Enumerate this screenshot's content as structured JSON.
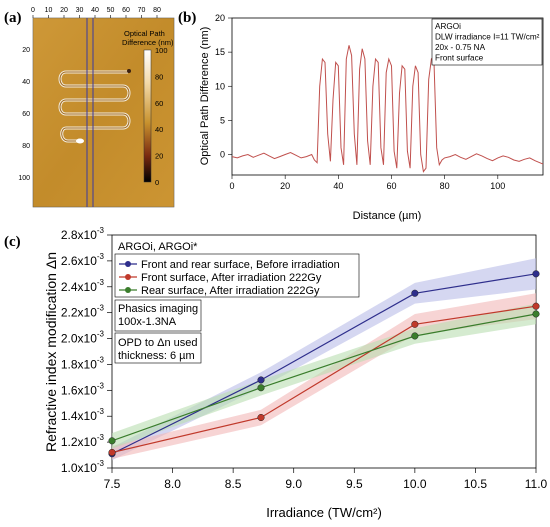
{
  "panels": [
    "(a)",
    "(b)",
    "(c)"
  ],
  "panel_a": {
    "x_ticks": [
      "0",
      "10",
      "20",
      "30",
      "40",
      "50",
      "60",
      "70",
      "80"
    ],
    "y_ticks": [
      "20",
      "40",
      "60",
      "80",
      "100"
    ],
    "colorbar_title_line1": "Optical Path",
    "colorbar_title_line2": "Difference (nm)",
    "colorbar_ticks": [
      "100",
      "80",
      "60",
      "40",
      "20",
      "0"
    ],
    "colors": {
      "background": "#c8922e",
      "waveguide": "#e8e0d0",
      "line": "#3a3aa0"
    }
  },
  "chart_data": [
    {
      "type": "line",
      "title": "",
      "xlabel": "Distance (µm)",
      "ylabel": "Optical Path Difference (nm)",
      "xlim": [
        0,
        117
      ],
      "ylim": [
        -3,
        20
      ],
      "x_ticks": [
        "0",
        "20",
        "40",
        "60",
        "80",
        "100"
      ],
      "y_ticks": [
        "0",
        "5",
        "10",
        "15",
        "20"
      ],
      "annotation": [
        "ARGOi",
        "DLW irradiance I=11 TW/cm²",
        "20x - 0.75 NA",
        "Front surface"
      ],
      "series": [
        {
          "color": "#c0504d",
          "x": [
            0,
            2,
            4,
            6,
            8,
            10,
            12,
            14,
            16,
            18,
            20,
            22,
            24,
            26,
            28,
            30,
            31,
            32,
            33,
            34,
            35,
            36,
            37,
            38,
            39,
            40,
            41,
            42,
            43,
            44,
            45,
            46,
            47,
            48,
            49,
            50,
            51,
            52,
            53,
            54,
            55,
            56,
            57,
            58,
            59,
            60,
            61,
            62,
            63,
            64,
            65,
            66,
            67,
            68,
            69,
            70,
            71,
            72,
            73,
            74,
            75,
            76,
            77,
            78,
            79,
            80,
            82,
            84,
            86,
            88,
            90,
            92,
            94,
            96,
            98,
            100,
            102,
            104,
            106,
            108,
            110,
            112,
            114,
            117
          ],
          "y": [
            -0.3,
            -0.5,
            -0.2,
            0.0,
            -0.4,
            -0.1,
            0.2,
            -0.2,
            -0.6,
            -0.3,
            0.0,
            0.3,
            -0.1,
            -0.5,
            -0.3,
            0.0,
            -0.8,
            -1.2,
            10.0,
            14.0,
            13.5,
            3.0,
            -1.0,
            8.0,
            13.5,
            13.0,
            1.0,
            -1.5,
            14.0,
            16.0,
            14.5,
            3.0,
            -1.5,
            12.5,
            15.5,
            14.0,
            2.0,
            -1.5,
            10.0,
            14.0,
            13.5,
            1.0,
            -1.5,
            12.0,
            14.0,
            13.0,
            0.5,
            -2.0,
            9.0,
            13.0,
            12.5,
            0.5,
            -2.0,
            10.0,
            13.0,
            12.0,
            0.0,
            -2.5,
            -2.0,
            11.0,
            14.0,
            13.5,
            1.0,
            -1.5,
            -0.8,
            -0.5,
            -0.3,
            0.0,
            -0.4,
            -0.7,
            -0.3,
            0.1,
            -0.2,
            -0.6,
            -0.9,
            -0.5,
            -0.2,
            -0.4,
            -0.8,
            -1.0,
            -0.7,
            -0.5,
            -0.9,
            -1.4
          ]
        }
      ]
    },
    {
      "type": "line",
      "title": "",
      "xlabel": "Irradiance (TW/cm²)",
      "ylabel": "Refractive index modification Δn",
      "xlim": [
        7.5,
        11.0
      ],
      "ylim": [
        1.0,
        2.8
      ],
      "y_exponent": "-3",
      "x_ticks": [
        "7.5",
        "8.0",
        "8.5",
        "9.0",
        "9.5",
        "10.0",
        "10.5",
        "11.0"
      ],
      "y_ticks": [
        "1.0",
        "1.2",
        "1.4",
        "1.6",
        "1.8",
        "2.0",
        "2.2",
        "2.4",
        "2.6",
        "2.8"
      ],
      "y_tick_suffix": "x10",
      "legend_header": "ARGOi, ARGOi*",
      "legend_placement": "top-left",
      "notes": [
        "Phasics imaging",
        "100x-1.3NA",
        "OPD to Δn used",
        "thickness: 6 µm"
      ],
      "series": [
        {
          "name": "Front and rear surface, Before irradiation",
          "color": "#2e2e8c",
          "band": "#b9bde8",
          "x": [
            7.5,
            8.73,
            10.0,
            11.0
          ],
          "y": [
            1.11,
            1.68,
            2.35,
            2.5
          ],
          "band_halfwidth": [
            0.05,
            0.06,
            0.08,
            0.12
          ]
        },
        {
          "name": "Front surface, After irradiation 222Gy",
          "color": "#c0392b",
          "band": "#f2b8b8",
          "x": [
            7.5,
            8.73,
            10.0,
            11.0
          ],
          "y": [
            1.12,
            1.39,
            2.11,
            2.25
          ],
          "band_halfwidth": [
            0.05,
            0.06,
            0.08,
            0.1
          ]
        },
        {
          "name": "Rear surface, After irradiation 222Gy",
          "color": "#3a7d2c",
          "band": "#b9deb1",
          "x": [
            7.5,
            8.73,
            10.0,
            11.0
          ],
          "y": [
            1.21,
            1.62,
            2.02,
            2.19
          ],
          "band_halfwidth": [
            0.06,
            0.06,
            0.06,
            0.08
          ]
        }
      ]
    }
  ]
}
